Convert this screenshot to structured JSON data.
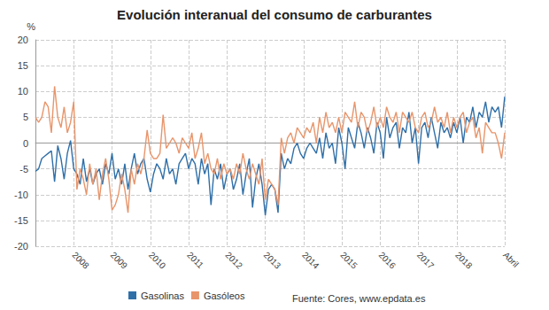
{
  "chart_data": {
    "type": "line",
    "title": "Evolución interanual del consumo de carburantes",
    "y_label": "%",
    "source": "Fuente: Cores, www.epdata.es",
    "categories": [
      null,
      null,
      null,
      null,
      null,
      null,
      null,
      null,
      null,
      null,
      null,
      null,
      "2008",
      null,
      null,
      null,
      null,
      null,
      null,
      null,
      null,
      null,
      null,
      null,
      "2009",
      null,
      null,
      null,
      null,
      null,
      null,
      null,
      null,
      null,
      null,
      null,
      "2010",
      null,
      null,
      null,
      null,
      null,
      null,
      null,
      null,
      null,
      null,
      null,
      "2011",
      null,
      null,
      null,
      null,
      null,
      null,
      null,
      null,
      null,
      null,
      null,
      "2012",
      null,
      null,
      null,
      null,
      null,
      null,
      null,
      null,
      null,
      null,
      null,
      "2013",
      null,
      null,
      null,
      null,
      null,
      null,
      null,
      null,
      null,
      null,
      null,
      "2014",
      null,
      null,
      null,
      null,
      null,
      null,
      null,
      null,
      null,
      null,
      null,
      "2015",
      null,
      null,
      null,
      null,
      null,
      null,
      null,
      null,
      null,
      null,
      null,
      "2016",
      null,
      null,
      null,
      null,
      null,
      null,
      null,
      null,
      null,
      null,
      null,
      "2017",
      null,
      null,
      null,
      null,
      null,
      null,
      null,
      null,
      null,
      null,
      null,
      "2018",
      null,
      null,
      null,
      null,
      null,
      null,
      null,
      null,
      null,
      null,
      null,
      null,
      null,
      null,
      "Abril"
    ],
    "series": [
      {
        "name": "Gasolinas",
        "color": "#2f6fa8",
        "values": [
          -5.5,
          -5,
          -3,
          -2.5,
          -2,
          -1.5,
          -7.5,
          -0.5,
          -3,
          -7,
          -2,
          0.5,
          -5,
          -6,
          -8,
          -3,
          -7.5,
          -5,
          -8,
          -6,
          -5,
          -8,
          -4,
          -6,
          -2,
          -7,
          -5,
          -8,
          -4,
          -9,
          -5,
          -2,
          -6,
          -4,
          -3,
          -7,
          -9.5,
          -6,
          -4,
          -5,
          -7,
          -3,
          -6,
          -5,
          -8,
          -4,
          -3,
          -2,
          -5,
          -3,
          -4,
          -8,
          -3,
          -6,
          -4,
          -12,
          -5,
          -7,
          -4,
          -9,
          -6,
          -5,
          -9,
          -7,
          -4,
          -10,
          -6,
          -3,
          -12.5,
          -7,
          -4,
          -8,
          -14,
          -9,
          -8,
          -9,
          -13.5,
          -2,
          -5,
          -3,
          -4,
          -1,
          0,
          -2,
          -3,
          -1,
          0,
          -1,
          -2,
          1,
          -3,
          2,
          -1,
          0,
          -4,
          3,
          0,
          -5,
          3,
          1,
          -1,
          4,
          2,
          -1,
          3,
          1,
          -2,
          4,
          2,
          -3,
          5,
          1,
          3,
          4,
          -1,
          3,
          2,
          6,
          0,
          3,
          -4,
          3,
          4,
          1,
          5,
          2,
          -1,
          4,
          2,
          3,
          1,
          4,
          2,
          5,
          0,
          5,
          4,
          7,
          3,
          6,
          5,
          8,
          4,
          7,
          6,
          7,
          3,
          9
        ]
      },
      {
        "name": "Gasóleos",
        "color": "#e8956b",
        "values": [
          5,
          4,
          5,
          8,
          7,
          2,
          11,
          5,
          3,
          7,
          2,
          4,
          8,
          -9,
          -5,
          -7,
          -10,
          -4,
          -8,
          -5,
          -11,
          -6,
          -3,
          -7,
          -13,
          -12,
          -10,
          -6,
          -9,
          -13.5,
          -5,
          -8,
          -4,
          -6,
          -3,
          2.5,
          -2,
          -3,
          -3,
          -2,
          5.5,
          -1,
          0,
          1,
          0,
          -2,
          1,
          0,
          -1,
          2,
          -3,
          -1,
          2,
          -4,
          -2,
          -5,
          -6,
          -3,
          -7,
          -4,
          -6,
          -5,
          -7,
          -4,
          -6,
          -2,
          -5,
          -7,
          -4,
          -6,
          -8,
          -3,
          -11,
          -7,
          -8,
          -9,
          -12,
          1,
          -2,
          1,
          2,
          0,
          3,
          2,
          1,
          3,
          2,
          4,
          0,
          5,
          2,
          6,
          3,
          4,
          2,
          5,
          2,
          6,
          5,
          4,
          8,
          3,
          6,
          5,
          2,
          4,
          7,
          3,
          5,
          3,
          7,
          5,
          4,
          6,
          2,
          6,
          5,
          4,
          6,
          3,
          2,
          5,
          6,
          3,
          4,
          7,
          4,
          5,
          3,
          6,
          2,
          5,
          3,
          5,
          6,
          2,
          4,
          5,
          1,
          3,
          -2,
          4,
          3,
          2,
          2,
          0,
          -3,
          2
        ]
      }
    ],
    "ylim": [
      -20,
      20
    ],
    "yticks": [
      -20,
      -15,
      -10,
      -5,
      0,
      5,
      10,
      15,
      20
    ],
    "grid": true,
    "legend": "bottom"
  }
}
